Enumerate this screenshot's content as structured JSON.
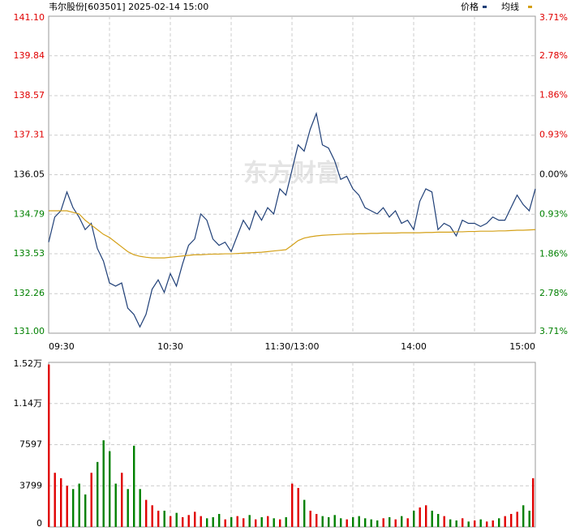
{
  "chart_data": [
    {
      "type": "line",
      "title": "韦尔股份[603501] 2025-02-14 15:00",
      "watermark": "东方财富",
      "x": [
        0,
        3,
        6,
        9,
        12,
        15,
        18,
        21,
        24,
        27,
        30,
        33,
        36,
        39,
        42,
        45,
        48,
        51,
        54,
        57,
        60,
        63,
        66,
        69,
        72,
        75,
        78,
        81,
        84,
        87,
        90,
        93,
        96,
        99,
        102,
        105,
        108,
        111,
        114,
        117,
        120,
        123,
        126,
        129,
        132,
        135,
        138,
        141,
        144,
        147,
        150,
        153,
        156,
        159,
        162,
        165,
        168,
        171,
        174,
        177,
        180,
        183,
        186,
        189,
        192,
        195,
        198,
        201,
        204,
        207,
        210,
        213,
        216,
        219,
        222,
        225,
        228,
        231,
        234,
        237,
        240
      ],
      "xlim": [
        0,
        240
      ],
      "xticks": [
        {
          "value": 0,
          "label": "09:30"
        },
        {
          "value": 60,
          "label": "10:30"
        },
        {
          "value": 120,
          "label": "11:30/13:00"
        },
        {
          "value": 180,
          "label": "14:00"
        },
        {
          "value": 240,
          "label": "15:00"
        }
      ],
      "ylim": [
        131.0,
        141.1
      ],
      "yticks": [
        {
          "value": 141.1,
          "label": "141.10"
        },
        139.84,
        138.57,
        137.31,
        136.05,
        134.79,
        133.53,
        132.26,
        {
          "value": 131.0,
          "label": "131.00"
        }
      ],
      "y2lim": [
        -3.71,
        3.71
      ],
      "y2ticks": [
        {
          "value": 3.71,
          "label": "3.71%"
        },
        {
          "value": 2.78,
          "label": "2.78%"
        },
        {
          "value": 1.86,
          "label": "1.86%"
        },
        {
          "value": 0.93,
          "label": "0.93%"
        },
        {
          "value": 0,
          "label": "0.00%"
        },
        {
          "value": -0.93,
          "label": "0.93%"
        },
        {
          "value": -1.86,
          "label": "1.86%"
        },
        {
          "value": -2.78,
          "label": "2.78%"
        },
        {
          "value": -3.71,
          "label": "3.71%"
        }
      ],
      "grid": true,
      "series": [
        {
          "name": "价格",
          "color": "#1f3f77",
          "values": [
            133.9,
            134.7,
            134.9,
            135.5,
            135.0,
            134.7,
            134.3,
            134.5,
            133.7,
            133.3,
            132.6,
            132.5,
            132.6,
            131.8,
            131.6,
            131.2,
            131.6,
            132.4,
            132.7,
            132.3,
            132.9,
            132.5,
            133.2,
            133.8,
            134.0,
            134.8,
            134.6,
            134.0,
            133.8,
            133.9,
            133.6,
            134.1,
            134.6,
            134.3,
            134.9,
            134.6,
            135.0,
            134.8,
            135.6,
            135.4,
            136.2,
            137.0,
            136.8,
            137.5,
            138.0,
            137.0,
            136.9,
            136.5,
            135.9,
            136.0,
            135.6,
            135.4,
            135.0,
            134.9,
            134.8,
            135.0,
            134.7,
            134.9,
            134.5,
            134.6,
            134.3,
            135.2,
            135.6,
            135.5,
            134.3,
            134.5,
            134.4,
            134.1,
            134.6,
            134.5,
            134.5,
            134.4,
            134.5,
            134.7,
            134.6,
            134.6,
            135.0,
            135.4,
            135.1,
            134.9,
            135.6
          ]
        },
        {
          "name": "均线",
          "color": "#d4a017",
          "values": [
            134.9,
            134.9,
            134.9,
            134.9,
            134.85,
            134.8,
            134.6,
            134.45,
            134.3,
            134.15,
            134.05,
            133.9,
            133.75,
            133.6,
            133.5,
            133.45,
            133.42,
            133.4,
            133.4,
            133.4,
            133.42,
            133.44,
            133.46,
            133.48,
            133.5,
            133.5,
            133.51,
            133.52,
            133.52,
            133.53,
            133.53,
            133.54,
            133.55,
            133.56,
            133.57,
            133.58,
            133.6,
            133.62,
            133.64,
            133.66,
            133.8,
            133.95,
            134.03,
            134.07,
            134.1,
            134.12,
            134.13,
            134.14,
            134.15,
            134.16,
            134.16,
            134.17,
            134.17,
            134.18,
            134.18,
            134.19,
            134.19,
            134.19,
            134.2,
            134.2,
            134.2,
            134.2,
            134.21,
            134.21,
            134.22,
            134.22,
            134.22,
            134.23,
            134.23,
            134.24,
            134.24,
            134.25,
            134.25,
            134.25,
            134.26,
            134.26,
            134.27,
            134.28,
            134.28,
            134.29,
            134.3
          ]
        }
      ]
    },
    {
      "type": "bar",
      "ylim": [
        0,
        15196
      ],
      "yticks": [
        0,
        3799,
        7597,
        {
          "value": 11397,
          "label": "1.14万"
        },
        {
          "value": 15196,
          "label": "1.52万"
        }
      ],
      "values": [
        15000,
        5000,
        4500,
        3800,
        3500,
        4000,
        3000,
        5000,
        6000,
        8000,
        7000,
        4000,
        5000,
        3500,
        7500,
        3500,
        2500,
        2000,
        1500,
        1500,
        1000,
        1300,
        900,
        1100,
        1400,
        1000,
        800,
        900,
        1200,
        700,
        900,
        1000,
        800,
        1100,
        700,
        900,
        1000,
        800,
        700,
        900,
        4000,
        3600,
        2500,
        1500,
        1200,
        1000,
        900,
        1100,
        800,
        700,
        900,
        1000,
        800,
        700,
        600,
        800,
        900,
        700,
        1000,
        800,
        1500,
        1800,
        2000,
        1500,
        1200,
        1000,
        700,
        600,
        800,
        500,
        600,
        700,
        500,
        600,
        800,
        1000,
        1200,
        1400,
        2000,
        1500,
        4500
      ]
    }
  ]
}
